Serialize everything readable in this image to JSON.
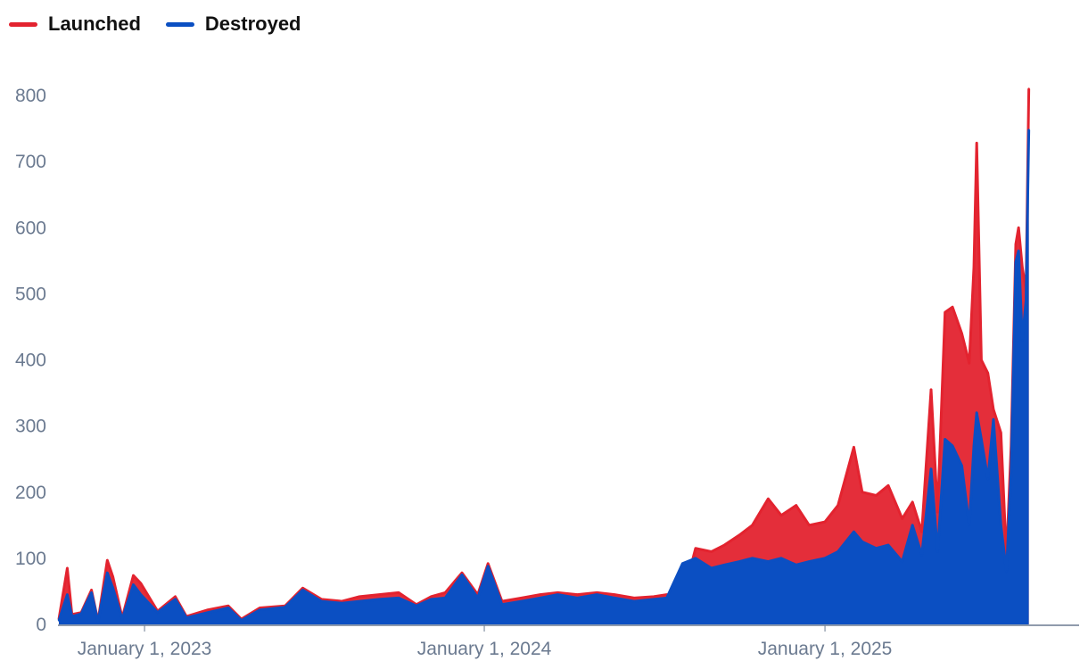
{
  "legend": [
    {
      "label": "Launched",
      "color": "#e3232f"
    },
    {
      "label": "Destroyed",
      "color": "#0b4fc2"
    }
  ],
  "chart_data": {
    "type": "line",
    "title": "",
    "xlabel": "",
    "ylabel": "",
    "ylim": [
      0,
      800
    ],
    "yticks": [
      0,
      100,
      200,
      300,
      400,
      500,
      600,
      700,
      800
    ],
    "xlim": [
      "2022-09-30",
      "2025-10-01"
    ],
    "xticks": [
      {
        "date": "2023-01-01",
        "label": "January 1, 2023"
      },
      {
        "date": "2024-01-01",
        "label": "January 1, 2024"
      },
      {
        "date": "2025-01-01",
        "label": "January 1, 2025"
      }
    ],
    "grid": false,
    "legend_position": "top-left",
    "series": [
      {
        "name": "Launched",
        "color": "#e3232f",
        "points": [
          [
            "2022-10-01",
            8
          ],
          [
            "2022-10-10",
            85
          ],
          [
            "2022-10-15",
            15
          ],
          [
            "2022-10-25",
            18
          ],
          [
            "2022-11-05",
            52
          ],
          [
            "2022-11-12",
            5
          ],
          [
            "2022-11-22",
            97
          ],
          [
            "2022-11-28",
            72
          ],
          [
            "2022-12-08",
            10
          ],
          [
            "2022-12-20",
            74
          ],
          [
            "2022-12-28",
            62
          ],
          [
            "2023-01-15",
            20
          ],
          [
            "2023-02-03",
            42
          ],
          [
            "2023-02-15",
            12
          ],
          [
            "2023-03-10",
            22
          ],
          [
            "2023-04-01",
            28
          ],
          [
            "2023-04-15",
            8
          ],
          [
            "2023-05-05",
            25
          ],
          [
            "2023-06-01",
            28
          ],
          [
            "2023-06-20",
            55
          ],
          [
            "2023-07-10",
            38
          ],
          [
            "2023-08-01",
            35
          ],
          [
            "2023-08-20",
            42
          ],
          [
            "2023-09-10",
            45
          ],
          [
            "2023-10-01",
            48
          ],
          [
            "2023-10-20",
            30
          ],
          [
            "2023-11-05",
            42
          ],
          [
            "2023-11-20",
            48
          ],
          [
            "2023-12-08",
            78
          ],
          [
            "2023-12-25",
            45
          ],
          [
            "2024-01-05",
            92
          ],
          [
            "2024-01-20",
            35
          ],
          [
            "2024-02-10",
            40
          ],
          [
            "2024-03-01",
            45
          ],
          [
            "2024-03-20",
            48
          ],
          [
            "2024-04-10",
            45
          ],
          [
            "2024-05-01",
            48
          ],
          [
            "2024-05-20",
            45
          ],
          [
            "2024-06-10",
            40
          ],
          [
            "2024-07-01",
            42
          ],
          [
            "2024-07-15",
            45
          ],
          [
            "2024-08-01",
            40
          ],
          [
            "2024-08-15",
            115
          ],
          [
            "2024-09-01",
            110
          ],
          [
            "2024-09-15",
            120
          ],
          [
            "2024-10-01",
            135
          ],
          [
            "2024-10-15",
            150
          ],
          [
            "2024-11-01",
            190
          ],
          [
            "2024-11-15",
            165
          ],
          [
            "2024-12-01",
            180
          ],
          [
            "2024-12-15",
            150
          ],
          [
            "2025-01-01",
            155
          ],
          [
            "2025-01-15",
            180
          ],
          [
            "2025-02-01",
            268
          ],
          [
            "2025-02-10",
            200
          ],
          [
            "2025-02-25",
            195
          ],
          [
            "2025-03-10",
            210
          ],
          [
            "2025-03-25",
            160
          ],
          [
            "2025-04-05",
            185
          ],
          [
            "2025-04-15",
            140
          ],
          [
            "2025-04-25",
            355
          ],
          [
            "2025-05-02",
            170
          ],
          [
            "2025-05-10",
            472
          ],
          [
            "2025-05-18",
            480
          ],
          [
            "2025-05-28",
            440
          ],
          [
            "2025-06-05",
            395
          ],
          [
            "2025-06-10",
            540
          ],
          [
            "2025-06-13",
            728
          ],
          [
            "2025-06-18",
            400
          ],
          [
            "2025-06-25",
            380
          ],
          [
            "2025-07-01",
            325
          ],
          [
            "2025-07-09",
            290
          ],
          [
            "2025-07-15",
            100
          ],
          [
            "2025-07-20",
            270
          ],
          [
            "2025-07-25",
            575
          ],
          [
            "2025-07-28",
            600
          ],
          [
            "2025-08-01",
            540
          ],
          [
            "2025-08-05",
            505
          ],
          [
            "2025-08-08",
            810
          ]
        ]
      },
      {
        "name": "Destroyed",
        "color": "#0b4fc2",
        "points": [
          [
            "2022-10-01",
            6
          ],
          [
            "2022-10-10",
            45
          ],
          [
            "2022-10-15",
            12
          ],
          [
            "2022-10-25",
            16
          ],
          [
            "2022-11-05",
            48
          ],
          [
            "2022-11-12",
            4
          ],
          [
            "2022-11-22",
            78
          ],
          [
            "2022-11-28",
            55
          ],
          [
            "2022-12-08",
            8
          ],
          [
            "2022-12-20",
            60
          ],
          [
            "2022-12-28",
            45
          ],
          [
            "2023-01-15",
            18
          ],
          [
            "2023-02-03",
            38
          ],
          [
            "2023-02-15",
            10
          ],
          [
            "2023-03-10",
            18
          ],
          [
            "2023-04-01",
            25
          ],
          [
            "2023-04-15",
            6
          ],
          [
            "2023-05-05",
            22
          ],
          [
            "2023-06-01",
            26
          ],
          [
            "2023-06-20",
            52
          ],
          [
            "2023-07-10",
            35
          ],
          [
            "2023-08-01",
            32
          ],
          [
            "2023-08-20",
            35
          ],
          [
            "2023-09-10",
            38
          ],
          [
            "2023-10-01",
            40
          ],
          [
            "2023-10-20",
            28
          ],
          [
            "2023-11-05",
            38
          ],
          [
            "2023-11-20",
            40
          ],
          [
            "2023-12-08",
            75
          ],
          [
            "2023-12-25",
            40
          ],
          [
            "2024-01-05",
            88
          ],
          [
            "2024-01-20",
            30
          ],
          [
            "2024-02-10",
            35
          ],
          [
            "2024-03-01",
            40
          ],
          [
            "2024-03-20",
            45
          ],
          [
            "2024-04-10",
            40
          ],
          [
            "2024-05-01",
            45
          ],
          [
            "2024-05-20",
            40
          ],
          [
            "2024-06-10",
            35
          ],
          [
            "2024-07-01",
            38
          ],
          [
            "2024-07-15",
            40
          ],
          [
            "2024-08-01",
            92
          ],
          [
            "2024-08-15",
            100
          ],
          [
            "2024-09-01",
            85
          ],
          [
            "2024-09-15",
            90
          ],
          [
            "2024-10-01",
            95
          ],
          [
            "2024-10-15",
            100
          ],
          [
            "2024-11-01",
            95
          ],
          [
            "2024-11-15",
            100
          ],
          [
            "2024-12-01",
            90
          ],
          [
            "2024-12-15",
            95
          ],
          [
            "2025-01-01",
            100
          ],
          [
            "2025-01-15",
            110
          ],
          [
            "2025-02-01",
            140
          ],
          [
            "2025-02-10",
            125
          ],
          [
            "2025-02-25",
            115
          ],
          [
            "2025-03-10",
            120
          ],
          [
            "2025-03-25",
            95
          ],
          [
            "2025-04-05",
            150
          ],
          [
            "2025-04-15",
            105
          ],
          [
            "2025-04-25",
            235
          ],
          [
            "2025-05-02",
            110
          ],
          [
            "2025-05-10",
            280
          ],
          [
            "2025-05-18",
            270
          ],
          [
            "2025-05-28",
            240
          ],
          [
            "2025-06-05",
            150
          ],
          [
            "2025-06-10",
            270
          ],
          [
            "2025-06-13",
            320
          ],
          [
            "2025-06-18",
            280
          ],
          [
            "2025-06-25",
            220
          ],
          [
            "2025-07-01",
            310
          ],
          [
            "2025-07-09",
            150
          ],
          [
            "2025-07-15",
            80
          ],
          [
            "2025-07-20",
            230
          ],
          [
            "2025-07-25",
            548
          ],
          [
            "2025-07-28",
            565
          ],
          [
            "2025-08-01",
            430
          ],
          [
            "2025-08-05",
            490
          ],
          [
            "2025-08-08",
            748
          ]
        ]
      }
    ]
  }
}
